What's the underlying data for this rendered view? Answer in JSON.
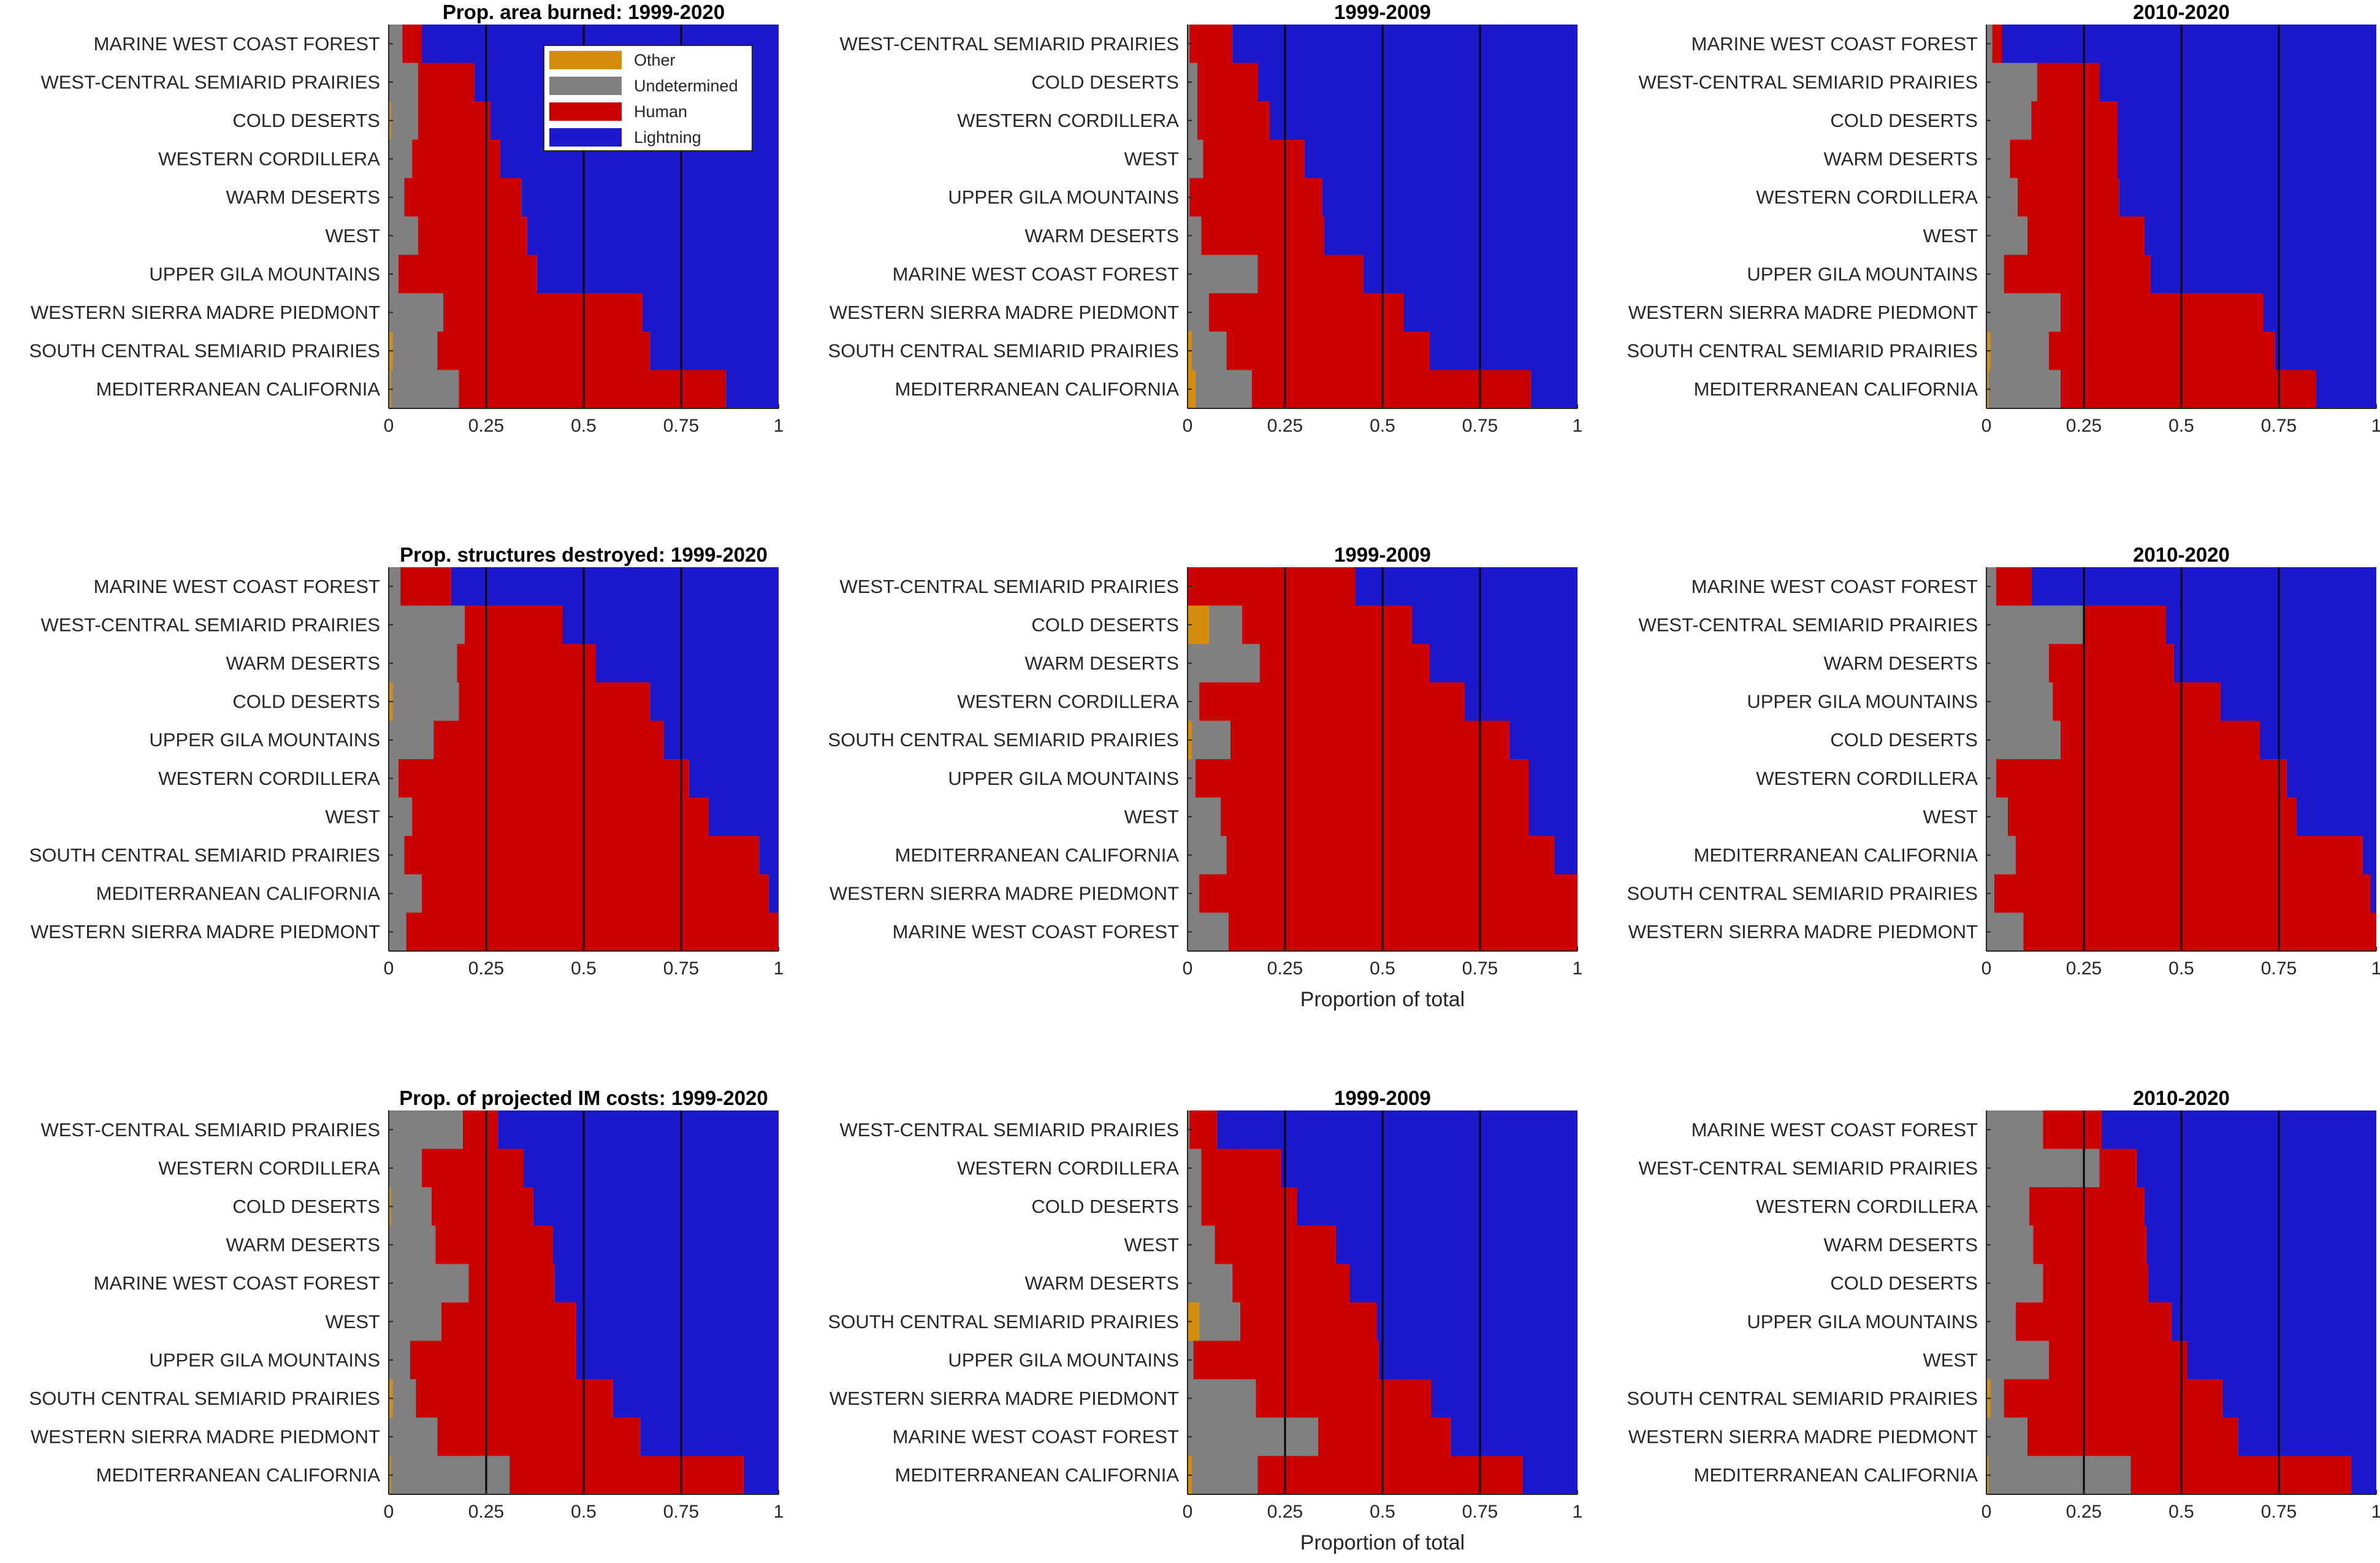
{
  "colors": {
    "Other": "#d58d0b",
    "Undetermined": "#808080",
    "Human": "#cc0000",
    "Lightning": "#1a1acc",
    "refline": "#000000"
  },
  "legend": {
    "entries": [
      "Other",
      "Undetermined",
      "Human",
      "Lightning"
    ],
    "placement": "inside-top-right of first panel"
  },
  "chart_data": [
    {
      "type": "bar",
      "stacked": "horizontal-100%",
      "title": "Prop. area burned: 1999-2020",
      "xlabel": "",
      "xlim": [
        0,
        1
      ],
      "xticks": [
        "0",
        "0.25",
        "0.5",
        "0.75",
        "1"
      ],
      "vlines": [
        0.25,
        0.5,
        0.75
      ],
      "categories": [
        "MARINE WEST COAST FOREST",
        "WEST-CENTRAL SEMIARID PRAIRIES",
        "COLD DESERTS",
        "WESTERN CORDILLERA",
        "WARM DESERTS",
        "WEST",
        "UPPER GILA MOUNTAINS",
        "WESTERN SIERRA MADRE PIEDMONT",
        "SOUTH CENTRAL SEMIARID PRAIRIES",
        "MEDITERRANEAN CALIFORNIA"
      ],
      "series": [
        {
          "name": "Other",
          "values": [
            0,
            0,
            0.005,
            0,
            0,
            0,
            0,
            0,
            0.01,
            0.005
          ]
        },
        {
          "name": "Undetermined",
          "values": [
            0.035,
            0.075,
            0.07,
            0.06,
            0.04,
            0.075,
            0.025,
            0.14,
            0.115,
            0.175
          ]
        },
        {
          "name": "Human",
          "values": [
            0.05,
            0.145,
            0.185,
            0.225,
            0.3,
            0.28,
            0.355,
            0.51,
            0.545,
            0.685
          ]
        },
        {
          "name": "Lightning",
          "values": [
            0.915,
            0.78,
            0.74,
            0.715,
            0.66,
            0.645,
            0.62,
            0.35,
            0.33,
            0.135
          ]
        }
      ]
    },
    {
      "type": "bar",
      "stacked": "horizontal-100%",
      "title": "1999-2009",
      "xlabel": "",
      "xlim": [
        0,
        1
      ],
      "xticks": [
        "0",
        "0.25",
        "0.5",
        "0.75",
        "1"
      ],
      "vlines": [
        0.25,
        0.5,
        0.75
      ],
      "categories": [
        "WEST-CENTRAL SEMIARID PRAIRIES",
        "COLD DESERTS",
        "WESTERN CORDILLERA",
        "WEST",
        "UPPER GILA MOUNTAINS",
        "WARM DESERTS",
        "MARINE WEST COAST FOREST",
        "WESTERN SIERRA MADRE PIEDMONT",
        "SOUTH CENTRAL SEMIARID PRAIRIES",
        "MEDITERRANEAN CALIFORNIA"
      ],
      "series": [
        {
          "name": "Other",
          "values": [
            0,
            0,
            0,
            0,
            0,
            0,
            0,
            0,
            0.01,
            0.02
          ]
        },
        {
          "name": "Undetermined",
          "values": [
            0.005,
            0.025,
            0.025,
            0.04,
            0.005,
            0.035,
            0.18,
            0.055,
            0.09,
            0.145
          ]
        },
        {
          "name": "Human",
          "values": [
            0.11,
            0.155,
            0.185,
            0.26,
            0.34,
            0.315,
            0.27,
            0.5,
            0.52,
            0.715
          ]
        },
        {
          "name": "Lightning",
          "values": [
            0.885,
            0.82,
            0.79,
            0.7,
            0.655,
            0.65,
            0.55,
            0.445,
            0.38,
            0.12
          ]
        }
      ]
    },
    {
      "type": "bar",
      "stacked": "horizontal-100%",
      "title": "2010-2020",
      "xlabel": "",
      "xlim": [
        0,
        1
      ],
      "xticks": [
        "0",
        "0.25",
        "0.5",
        "0.75",
        "1"
      ],
      "vlines": [
        0.25,
        0.5,
        0.75
      ],
      "categories": [
        "MARINE WEST COAST FOREST",
        "WEST-CENTRAL SEMIARID PRAIRIES",
        "COLD DESERTS",
        "WARM DESERTS",
        "WESTERN CORDILLERA",
        "WEST",
        "UPPER GILA MOUNTAINS",
        "WESTERN SIERRA MADRE PIEDMONT",
        "SOUTH CENTRAL SEMIARID PRAIRIES",
        "MEDITERRANEAN CALIFORNIA"
      ],
      "series": [
        {
          "name": "Other",
          "values": [
            0,
            0,
            0,
            0,
            0,
            0,
            0,
            0,
            0.01,
            0.005
          ]
        },
        {
          "name": "Undetermined",
          "values": [
            0.015,
            0.13,
            0.115,
            0.06,
            0.08,
            0.105,
            0.045,
            0.19,
            0.15,
            0.185
          ]
        },
        {
          "name": "Human",
          "values": [
            0.025,
            0.16,
            0.22,
            0.275,
            0.26,
            0.3,
            0.375,
            0.52,
            0.58,
            0.655
          ]
        },
        {
          "name": "Lightning",
          "values": [
            0.96,
            0.71,
            0.665,
            0.665,
            0.66,
            0.595,
            0.58,
            0.29,
            0.26,
            0.155
          ]
        }
      ]
    },
    {
      "type": "bar",
      "stacked": "horizontal-100%",
      "title": "Prop. structures destroyed: 1999-2020",
      "xlabel": "",
      "xlim": [
        0,
        1
      ],
      "xticks": [
        "0",
        "0.25",
        "0.5",
        "0.75",
        "1"
      ],
      "vlines": [
        0.25,
        0.5,
        0.75
      ],
      "categories": [
        "MARINE WEST COAST FOREST",
        "WEST-CENTRAL SEMIARID PRAIRIES",
        "WARM DESERTS",
        "COLD DESERTS",
        "UPPER GILA MOUNTAINS",
        "WESTERN CORDILLERA",
        "WEST",
        "SOUTH CENTRAL SEMIARID PRAIRIES",
        "MEDITERRANEAN CALIFORNIA",
        "WESTERN SIERRA MADRE PIEDMONT"
      ],
      "series": [
        {
          "name": "Other",
          "values": [
            0,
            0,
            0,
            0.01,
            0,
            0,
            0,
            0,
            0,
            0
          ]
        },
        {
          "name": "Undetermined",
          "values": [
            0.03,
            0.195,
            0.175,
            0.17,
            0.115,
            0.025,
            0.06,
            0.04,
            0.085,
            0.045
          ]
        },
        {
          "name": "Human",
          "values": [
            0.13,
            0.25,
            0.355,
            0.49,
            0.59,
            0.745,
            0.76,
            0.91,
            0.89,
            0.955
          ]
        },
        {
          "name": "Lightning",
          "values": [
            0.84,
            0.555,
            0.47,
            0.33,
            0.295,
            0.23,
            0.18,
            0.05,
            0.025,
            0
          ]
        }
      ]
    },
    {
      "type": "bar",
      "stacked": "horizontal-100%",
      "title": "1999-2009",
      "xlabel": "Proportion of total",
      "xlim": [
        0,
        1
      ],
      "xticks": [
        "0",
        "0.25",
        "0.5",
        "0.75",
        "1"
      ],
      "vlines": [
        0.25,
        0.5,
        0.75
      ],
      "categories": [
        "WEST-CENTRAL SEMIARID PRAIRIES",
        "COLD DESERTS",
        "WARM DESERTS",
        "WESTERN CORDILLERA",
        "SOUTH CENTRAL SEMIARID PRAIRIES",
        "UPPER GILA MOUNTAINS",
        "WEST",
        "MEDITERRANEAN CALIFORNIA",
        "WESTERN SIERRA MADRE PIEDMONT",
        "MARINE WEST COAST FOREST"
      ],
      "series": [
        {
          "name": "Other",
          "values": [
            0,
            0.055,
            0,
            0,
            0.01,
            0,
            0,
            0,
            0,
            0
          ]
        },
        {
          "name": "Undetermined",
          "values": [
            0,
            0.085,
            0.185,
            0.03,
            0.1,
            0.02,
            0.085,
            0.1,
            0.03,
            0.105
          ]
        },
        {
          "name": "Human",
          "values": [
            0.43,
            0.435,
            0.435,
            0.68,
            0.715,
            0.855,
            0.79,
            0.84,
            0.97,
            0.895
          ]
        },
        {
          "name": "Lightning",
          "values": [
            0.57,
            0.425,
            0.38,
            0.29,
            0.175,
            0.125,
            0.125,
            0.06,
            0,
            0
          ]
        }
      ]
    },
    {
      "type": "bar",
      "stacked": "horizontal-100%",
      "title": "2010-2020",
      "xlabel": "",
      "xlim": [
        0,
        1
      ],
      "xticks": [
        "0",
        "0.25",
        "0.5",
        "0.75",
        "1"
      ],
      "vlines": [
        0.25,
        0.5,
        0.75
      ],
      "categories": [
        "MARINE WEST COAST FOREST",
        "WEST-CENTRAL SEMIARID PRAIRIES",
        "WARM DESERTS",
        "UPPER GILA MOUNTAINS",
        "COLD DESERTS",
        "WESTERN CORDILLERA",
        "WEST",
        "MEDITERRANEAN CALIFORNIA",
        "SOUTH CENTRAL SEMIARID PRAIRIES",
        "WESTERN SIERRA MADRE PIEDMONT"
      ],
      "series": [
        {
          "name": "Other",
          "values": [
            0,
            0,
            0,
            0,
            0,
            0,
            0,
            0,
            0,
            0
          ]
        },
        {
          "name": "Undetermined",
          "values": [
            0.025,
            0.25,
            0.16,
            0.17,
            0.19,
            0.025,
            0.055,
            0.075,
            0.02,
            0.095
          ]
        },
        {
          "name": "Human",
          "values": [
            0.09,
            0.21,
            0.32,
            0.43,
            0.51,
            0.745,
            0.74,
            0.89,
            0.965,
            0.905
          ]
        },
        {
          "name": "Lightning",
          "values": [
            0.885,
            0.54,
            0.52,
            0.4,
            0.3,
            0.23,
            0.205,
            0.035,
            0.015,
            0
          ]
        }
      ]
    },
    {
      "type": "bar",
      "stacked": "horizontal-100%",
      "title": "Prop. of projected IM costs: 1999-2020",
      "xlabel": "",
      "xlim": [
        0,
        1
      ],
      "xticks": [
        "0",
        "0.25",
        "0.5",
        "0.75",
        "1"
      ],
      "vlines": [
        0.25,
        0.5,
        0.75
      ],
      "categories": [
        "WEST-CENTRAL SEMIARID PRAIRIES",
        "WESTERN CORDILLERA",
        "COLD DESERTS",
        "WARM DESERTS",
        "MARINE WEST COAST FOREST",
        "WEST",
        "UPPER GILA MOUNTAINS",
        "SOUTH CENTRAL SEMIARID PRAIRIES",
        "WESTERN SIERRA MADRE PIEDMONT",
        "MEDITERRANEAN CALIFORNIA"
      ],
      "series": [
        {
          "name": "Other",
          "values": [
            0,
            0,
            0.005,
            0,
            0,
            0,
            0,
            0.01,
            0,
            0.005
          ]
        },
        {
          "name": "Undetermined",
          "values": [
            0.19,
            0.085,
            0.105,
            0.12,
            0.205,
            0.135,
            0.055,
            0.06,
            0.125,
            0.305
          ]
        },
        {
          "name": "Human",
          "values": [
            0.09,
            0.26,
            0.26,
            0.3,
            0.22,
            0.345,
            0.425,
            0.505,
            0.52,
            0.6
          ]
        },
        {
          "name": "Lightning",
          "values": [
            0.72,
            0.655,
            0.63,
            0.58,
            0.575,
            0.52,
            0.52,
            0.425,
            0.355,
            0.09
          ]
        }
      ]
    },
    {
      "type": "bar",
      "stacked": "horizontal-100%",
      "title": "1999-2009",
      "xlabel": "Proportion of total",
      "xlim": [
        0,
        1
      ],
      "xticks": [
        "0",
        "0.25",
        "0.5",
        "0.75",
        "1"
      ],
      "vlines": [
        0.25,
        0.5,
        0.75
      ],
      "categories": [
        "WEST-CENTRAL SEMIARID PRAIRIES",
        "WESTERN CORDILLERA",
        "COLD DESERTS",
        "WEST",
        "WARM DESERTS",
        "SOUTH CENTRAL SEMIARID PRAIRIES",
        "UPPER GILA MOUNTAINS",
        "WESTERN SIERRA MADRE PIEDMONT",
        "MARINE WEST COAST FOREST",
        "MEDITERRANEAN CALIFORNIA"
      ],
      "series": [
        {
          "name": "Other",
          "values": [
            0,
            0,
            0,
            0,
            0,
            0.03,
            0,
            0,
            0,
            0.01
          ]
        },
        {
          "name": "Undetermined",
          "values": [
            0.005,
            0.035,
            0.035,
            0.07,
            0.115,
            0.105,
            0.015,
            0.175,
            0.335,
            0.17
          ]
        },
        {
          "name": "Human",
          "values": [
            0.07,
            0.205,
            0.245,
            0.31,
            0.3,
            0.35,
            0.475,
            0.45,
            0.34,
            0.68
          ]
        },
        {
          "name": "Lightning",
          "values": [
            0.925,
            0.76,
            0.72,
            0.62,
            0.585,
            0.515,
            0.51,
            0.375,
            0.325,
            0.14
          ]
        }
      ]
    },
    {
      "type": "bar",
      "stacked": "horizontal-100%",
      "title": "2010-2020",
      "xlabel": "",
      "xlim": [
        0,
        1
      ],
      "xticks": [
        "0",
        "0.25",
        "0.5",
        "0.75",
        "1"
      ],
      "vlines": [
        0.25,
        0.5,
        0.75
      ],
      "categories": [
        "MARINE WEST COAST FOREST",
        "WEST-CENTRAL SEMIARID PRAIRIES",
        "WESTERN CORDILLERA",
        "WARM DESERTS",
        "COLD DESERTS",
        "UPPER GILA MOUNTAINS",
        "WEST",
        "SOUTH CENTRAL SEMIARID PRAIRIES",
        "WESTERN SIERRA MADRE PIEDMONT",
        "MEDITERRANEAN CALIFORNIA"
      ],
      "series": [
        {
          "name": "Other",
          "values": [
            0,
            0,
            0,
            0,
            0,
            0,
            0,
            0.01,
            0,
            0.005
          ]
        },
        {
          "name": "Undetermined",
          "values": [
            0.145,
            0.29,
            0.11,
            0.12,
            0.145,
            0.075,
            0.16,
            0.035,
            0.105,
            0.365
          ]
        },
        {
          "name": "Human",
          "values": [
            0.15,
            0.095,
            0.295,
            0.29,
            0.27,
            0.4,
            0.355,
            0.56,
            0.54,
            0.565
          ]
        },
        {
          "name": "Lightning",
          "values": [
            0.705,
            0.615,
            0.595,
            0.59,
            0.585,
            0.525,
            0.485,
            0.395,
            0.355,
            0.065
          ]
        }
      ]
    }
  ]
}
